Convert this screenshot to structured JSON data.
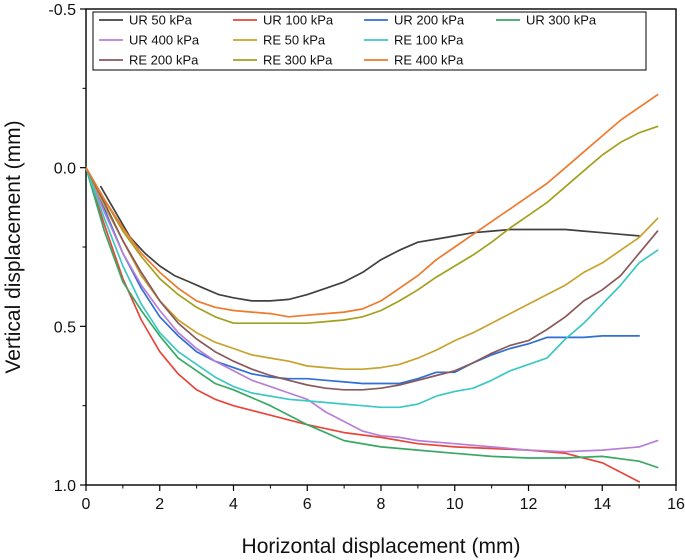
{
  "chart_data": {
    "type": "line",
    "title": "",
    "xlabel": "Horizontal displacement (mm)",
    "ylabel": "Vertical displacement (mm)",
    "xlim": [
      0,
      16
    ],
    "ylim": [
      -0.5,
      1.0
    ],
    "y_inverted": true,
    "grid": false,
    "legend_position": "top-left",
    "x_ticks": [
      "0",
      "2",
      "4",
      "6",
      "8",
      "10",
      "12",
      "14",
      "16"
    ],
    "y_ticks": [
      "-0.5",
      "0.0",
      "0.5",
      "1.0"
    ],
    "series": [
      {
        "name": "UR 50 kPa",
        "color": "#404040",
        "x": [
          0.4,
          0.8,
          1.2,
          1.6,
          2.0,
          2.4,
          2.8,
          3.2,
          3.6,
          4.0,
          4.5,
          5.0,
          5.5,
          6.0,
          6.5,
          7.0,
          7.5,
          8.0,
          8.5,
          9.0,
          9.5,
          10.0,
          10.5,
          11.0,
          11.5,
          12.0,
          12.5,
          13.0,
          13.5,
          14.0,
          14.5,
          15.0
        ],
        "y": [
          0.06,
          0.14,
          0.22,
          0.27,
          0.31,
          0.34,
          0.36,
          0.38,
          0.4,
          0.41,
          0.42,
          0.42,
          0.415,
          0.4,
          0.38,
          0.36,
          0.33,
          0.29,
          0.26,
          0.235,
          0.225,
          0.215,
          0.205,
          0.2,
          0.195,
          0.195,
          0.195,
          0.195,
          0.2,
          0.205,
          0.21,
          0.215
        ]
      },
      {
        "name": "UR 100 kPa",
        "color": "#e8463c",
        "x": [
          0.0,
          0.5,
          1.0,
          1.5,
          2.0,
          2.5,
          3.0,
          3.5,
          4.0,
          5.0,
          6.0,
          7.0,
          8.0,
          9.0,
          10.0,
          11.0,
          12.0,
          13.0,
          14.0,
          15.0
        ],
        "y": [
          0.0,
          0.18,
          0.35,
          0.48,
          0.58,
          0.65,
          0.7,
          0.73,
          0.75,
          0.78,
          0.81,
          0.835,
          0.85,
          0.87,
          0.88,
          0.885,
          0.89,
          0.9,
          0.93,
          0.99
        ]
      },
      {
        "name": "UR 200 kPa",
        "color": "#2f6fd6",
        "x": [
          0.0,
          0.5,
          1.0,
          1.5,
          2.0,
          2.5,
          3.0,
          3.5,
          4.0,
          4.5,
          5.0,
          5.5,
          6.0,
          6.5,
          7.0,
          7.5,
          8.0,
          8.5,
          9.0,
          9.5,
          10.0,
          10.5,
          11.0,
          11.5,
          12.0,
          12.5,
          13.0,
          13.5,
          14.0,
          14.5,
          15.0
        ],
        "y": [
          0.0,
          0.13,
          0.27,
          0.38,
          0.47,
          0.53,
          0.58,
          0.61,
          0.63,
          0.65,
          0.66,
          0.665,
          0.665,
          0.67,
          0.675,
          0.68,
          0.68,
          0.68,
          0.665,
          0.645,
          0.645,
          0.615,
          0.59,
          0.57,
          0.555,
          0.535,
          0.535,
          0.535,
          0.53,
          0.53,
          0.53
        ]
      },
      {
        "name": "UR 300 kPa",
        "color": "#3aa864",
        "x": [
          0.0,
          0.5,
          1.0,
          1.5,
          2.0,
          2.5,
          3.0,
          3.5,
          4.0,
          5.0,
          6.0,
          7.0,
          8.0,
          9.0,
          10.0,
          11.0,
          12.0,
          13.0,
          14.0,
          15.0,
          15.5
        ],
        "y": [
          0.0,
          0.2,
          0.36,
          0.45,
          0.53,
          0.6,
          0.64,
          0.68,
          0.7,
          0.75,
          0.81,
          0.86,
          0.88,
          0.89,
          0.9,
          0.91,
          0.915,
          0.915,
          0.91,
          0.925,
          0.945
        ]
      },
      {
        "name": "UR 400 kPa",
        "color": "#b77fd8",
        "x": [
          0.0,
          0.5,
          1.0,
          1.5,
          2.0,
          2.5,
          3.0,
          3.5,
          4.0,
          4.5,
          5.0,
          5.5,
          6.0,
          6.5,
          7.0,
          7.5,
          8.0,
          8.5,
          9.0,
          10.0,
          11.0,
          12.0,
          13.0,
          14.0,
          15.0,
          15.5
        ],
        "y": [
          0.0,
          0.14,
          0.27,
          0.37,
          0.45,
          0.52,
          0.57,
          0.61,
          0.64,
          0.67,
          0.69,
          0.71,
          0.73,
          0.77,
          0.8,
          0.83,
          0.845,
          0.85,
          0.86,
          0.87,
          0.88,
          0.89,
          0.895,
          0.89,
          0.88,
          0.86
        ]
      },
      {
        "name": "RE 50 kPa",
        "color": "#c8a22e",
        "x": [
          0.0,
          0.5,
          1.0,
          1.5,
          2.0,
          2.5,
          3.0,
          3.5,
          4.0,
          4.5,
          5.0,
          5.5,
          6.0,
          6.5,
          7.0,
          7.5,
          8.0,
          8.5,
          9.0,
          9.5,
          10.0,
          10.5,
          11.0,
          11.5,
          12.0,
          12.5,
          13.0,
          13.5,
          14.0,
          14.5,
          15.0,
          15.5
        ],
        "y": [
          0.0,
          0.12,
          0.23,
          0.34,
          0.42,
          0.48,
          0.52,
          0.55,
          0.57,
          0.59,
          0.6,
          0.61,
          0.625,
          0.63,
          0.635,
          0.635,
          0.63,
          0.62,
          0.6,
          0.575,
          0.545,
          0.52,
          0.49,
          0.46,
          0.43,
          0.4,
          0.37,
          0.33,
          0.3,
          0.26,
          0.22,
          0.16
        ]
      },
      {
        "name": "RE 100 kPa",
        "color": "#3cc8c4",
        "x": [
          0.0,
          0.5,
          1.0,
          1.5,
          2.0,
          2.5,
          3.0,
          3.5,
          4.0,
          4.5,
          5.0,
          5.5,
          6.0,
          6.5,
          7.0,
          7.5,
          8.0,
          8.5,
          9.0,
          9.5,
          10.0,
          10.5,
          11.0,
          11.5,
          12.0,
          12.5,
          13.0,
          13.5,
          14.0,
          14.5,
          15.0,
          15.5
        ],
        "y": [
          0.0,
          0.16,
          0.31,
          0.43,
          0.52,
          0.58,
          0.62,
          0.66,
          0.69,
          0.71,
          0.72,
          0.73,
          0.735,
          0.74,
          0.745,
          0.75,
          0.755,
          0.755,
          0.745,
          0.72,
          0.705,
          0.695,
          0.67,
          0.64,
          0.62,
          0.6,
          0.54,
          0.49,
          0.43,
          0.37,
          0.3,
          0.26
        ]
      },
      {
        "name": "RE 200 kPa",
        "color": "#8a5a5a",
        "x": [
          0.0,
          0.5,
          1.0,
          1.5,
          2.0,
          2.5,
          3.0,
          3.5,
          4.0,
          4.5,
          5.0,
          5.5,
          6.0,
          6.5,
          7.0,
          7.5,
          8.0,
          8.5,
          9.0,
          9.5,
          10.0,
          10.5,
          11.0,
          11.5,
          12.0,
          12.5,
          13.0,
          13.5,
          14.0,
          14.5,
          15.0,
          15.5
        ],
        "y": [
          0.0,
          0.11,
          0.23,
          0.33,
          0.42,
          0.49,
          0.54,
          0.58,
          0.61,
          0.635,
          0.655,
          0.67,
          0.685,
          0.695,
          0.7,
          0.7,
          0.695,
          0.685,
          0.67,
          0.655,
          0.64,
          0.615,
          0.585,
          0.56,
          0.545,
          0.51,
          0.47,
          0.42,
          0.385,
          0.34,
          0.27,
          0.2
        ]
      },
      {
        "name": "RE 300 kPa",
        "color": "#a3a01e",
        "x": [
          0.0,
          0.5,
          1.0,
          1.5,
          2.0,
          2.5,
          3.0,
          3.5,
          4.0,
          4.5,
          5.0,
          5.5,
          6.0,
          6.5,
          7.0,
          7.5,
          8.0,
          8.5,
          9.0,
          9.5,
          10.0,
          10.5,
          11.0,
          11.5,
          12.0,
          12.5,
          13.0,
          13.5,
          14.0,
          14.5,
          15.0,
          15.5
        ],
        "y": [
          0.0,
          0.1,
          0.2,
          0.28,
          0.35,
          0.4,
          0.44,
          0.47,
          0.49,
          0.49,
          0.49,
          0.49,
          0.49,
          0.485,
          0.48,
          0.47,
          0.45,
          0.42,
          0.385,
          0.345,
          0.31,
          0.275,
          0.235,
          0.19,
          0.15,
          0.11,
          0.06,
          0.01,
          -0.04,
          -0.08,
          -0.11,
          -0.13
        ]
      },
      {
        "name": "RE 400 kPa",
        "color": "#ee7a2e",
        "x": [
          0.0,
          0.5,
          1.0,
          1.5,
          2.0,
          2.5,
          3.0,
          3.5,
          4.0,
          4.5,
          5.0,
          5.5,
          6.0,
          6.5,
          7.0,
          7.5,
          8.0,
          8.5,
          9.0,
          9.5,
          10.0,
          10.5,
          11.0,
          11.5,
          12.0,
          12.5,
          13.0,
          13.5,
          14.0,
          14.5,
          15.0,
          15.5
        ],
        "y": [
          0.0,
          0.1,
          0.19,
          0.27,
          0.33,
          0.38,
          0.42,
          0.44,
          0.45,
          0.455,
          0.46,
          0.47,
          0.465,
          0.46,
          0.455,
          0.445,
          0.42,
          0.38,
          0.34,
          0.29,
          0.25,
          0.21,
          0.17,
          0.13,
          0.09,
          0.05,
          0.0,
          -0.05,
          -0.1,
          -0.15,
          -0.19,
          -0.23
        ]
      }
    ]
  }
}
